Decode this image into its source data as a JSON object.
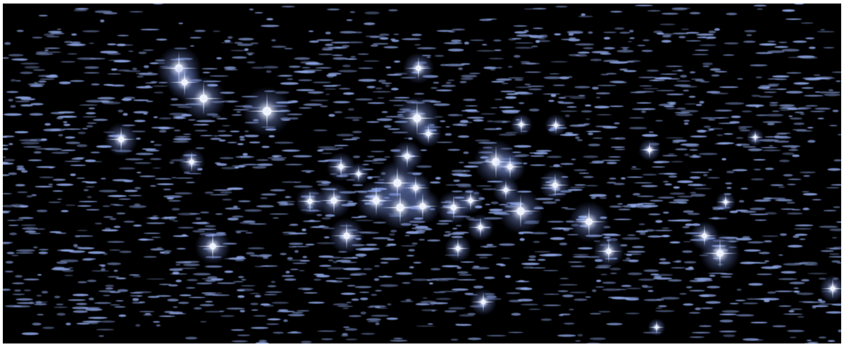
{
  "scene": {
    "subject": "star-field",
    "colors": {
      "sky": "#000000",
      "star": "#8fa8e8",
      "star_core": "#eef3ff",
      "glow": "#7f98ff",
      "border": "#ffffff"
    },
    "icons": {
      "bright_star": "four-point-sparkle-icon",
      "streak": "elongated-ellipse"
    }
  }
}
